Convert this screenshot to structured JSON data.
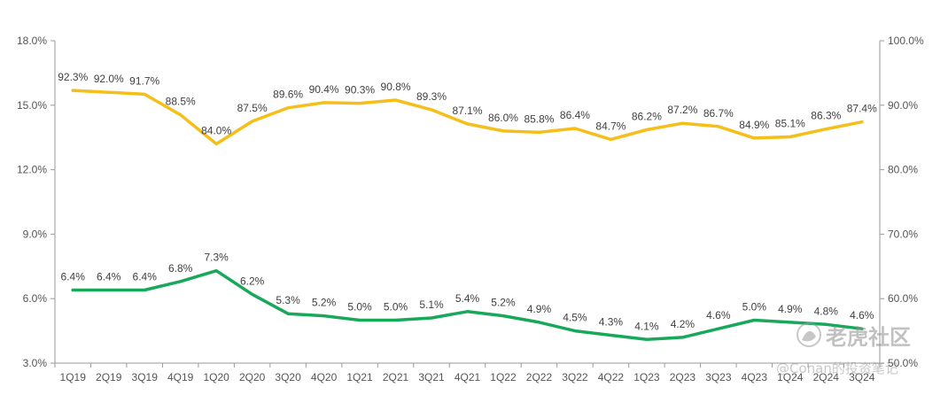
{
  "chart_data": {
    "type": "line",
    "categories": [
      "1Q19",
      "2Q19",
      "3Q19",
      "4Q19",
      "1Q20",
      "2Q20",
      "3Q20",
      "4Q20",
      "1Q21",
      "2Q21",
      "3Q21",
      "4Q21",
      "1Q22",
      "2Q22",
      "3Q22",
      "4Q22",
      "1Q23",
      "2Q23",
      "3Q23",
      "4Q23",
      "1Q24",
      "2Q24",
      "3Q24"
    ],
    "series": [
      {
        "axis": "right",
        "color": "#F5BE18",
        "values": [
          92.3,
          92.0,
          91.7,
          88.5,
          84.0,
          87.5,
          89.6,
          90.4,
          90.3,
          90.8,
          89.3,
          87.1,
          86.0,
          85.8,
          86.4,
          84.7,
          86.2,
          87.2,
          86.7,
          84.9,
          85.1,
          86.3,
          87.4
        ],
        "labels": [
          "92.3%",
          "92.0%",
          "91.7%",
          "88.5%",
          "84.0%",
          "87.5%",
          "89.6%",
          "90.4%",
          "90.3%",
          "90.8%",
          "89.3%",
          "87.1%",
          "86.0%",
          "85.8%",
          "86.4%",
          "84.7%",
          "86.2%",
          "87.2%",
          "86.7%",
          "84.9%",
          "85.1%",
          "86.3%",
          "87.4%"
        ]
      },
      {
        "axis": "left",
        "color": "#18A85A",
        "values": [
          6.4,
          6.4,
          6.4,
          6.8,
          7.3,
          6.2,
          5.3,
          5.2,
          5.0,
          5.0,
          5.1,
          5.4,
          5.2,
          4.9,
          4.5,
          4.3,
          4.1,
          4.2,
          4.6,
          5.0,
          4.9,
          4.8,
          4.6
        ],
        "labels": [
          "6.4%",
          "6.4%",
          "6.4%",
          "6.8%",
          "7.3%",
          "6.2%",
          "5.3%",
          "5.2%",
          "5.0%",
          "5.0%",
          "5.1%",
          "5.4%",
          "5.2%",
          "4.9%",
          "4.5%",
          "4.3%",
          "4.1%",
          "4.2%",
          "4.6%",
          "5.0%",
          "4.9%",
          "4.8%",
          "4.6%"
        ]
      }
    ],
    "y_left": {
      "range": [
        3.0,
        18.0
      ],
      "ticks": [
        3,
        6,
        9,
        12,
        15,
        18
      ],
      "tick_labels": [
        "3.0%",
        "6.0%",
        "9.0%",
        "12.0%",
        "15.0%",
        "18.0%"
      ]
    },
    "y_right": {
      "range": [
        50.0,
        100.0
      ],
      "ticks": [
        50,
        60,
        70,
        80,
        90,
        100
      ],
      "tick_labels": [
        "50.0%",
        "60.0%",
        "70.0%",
        "80.0%",
        "90.0%",
        "100.0%"
      ]
    },
    "grid": false,
    "legend": "none"
  },
  "watermark": {
    "brand": "老虎社区",
    "credit": "@Conan的投资笔记"
  }
}
